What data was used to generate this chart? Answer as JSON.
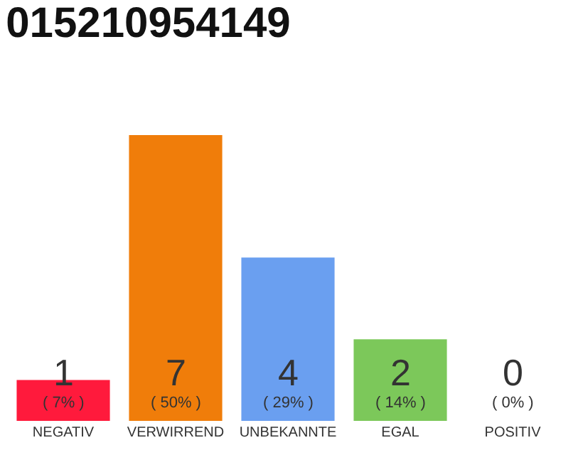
{
  "chart_data": {
    "type": "bar",
    "title": "015210954149",
    "categories": [
      "NEGATIV",
      "VERWIRREND",
      "UNBEKANNTE",
      "EGAL",
      "POSITIV"
    ],
    "values": [
      1,
      7,
      4,
      2,
      0
    ],
    "colors": [
      "#ff1a3c",
      "#f07d0a",
      "#6a9ff0",
      "#7cc85a",
      "#d0d0d0"
    ],
    "value_labels": [
      "1\n( 7% )",
      "7\n( 50% )",
      "4\n( 29% )",
      "2\n( 14% )",
      "0\n( 0% )"
    ],
    "ylim": [
      0,
      7
    ],
    "tick_labels": "x"
  }
}
